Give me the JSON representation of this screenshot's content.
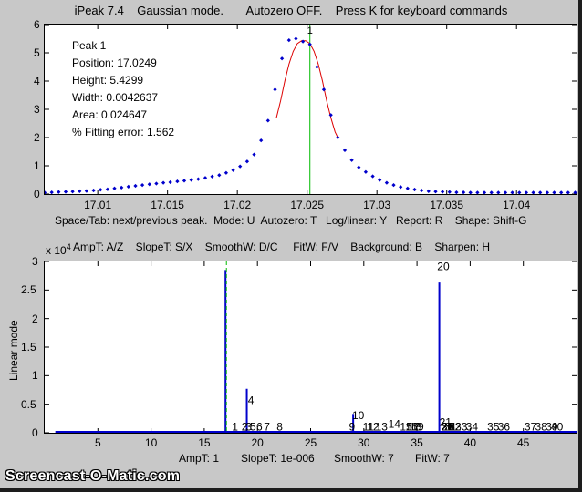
{
  "window": {
    "title": "iPeak 7.4    Gaussian mode.       Autozero OFF.    Press K for keyboard commands"
  },
  "upper": {
    "info": {
      "peak": "Peak 1",
      "position": "Position: 17.0249",
      "height": "Height: 5.4299",
      "width": "Width: 0.0042637",
      "area": "Area: 0.024647",
      "fitting_error": "% Fitting error: 1.562"
    },
    "help_line_1": "Space/Tab: next/previous peak.  Mode: U  Autozero: T   Log/linear: Y   Report: R    Shape: Shift-G",
    "help_line_2": "AmpT: A/Z    SlopeT: S/X    SmoothW: D/C     FitW: F/V    Background: B    Sharpen: H",
    "peak_marker": "1"
  },
  "lower": {
    "ylabel": "Linear mode",
    "exponent_label": "x 10",
    "exponent_power": "4",
    "status": {
      "ampt": "AmpT: 1",
      "slopet": "SlopeT: 1e-006",
      "smoothw": "SmoothW: 7",
      "fitw": "FitW: 7"
    }
  },
  "watermark": "Screencast-O-Matic.com",
  "colors": {
    "data_points": "#0000cc",
    "fit_curve": "#dd0000",
    "marker_line": "#00bb00",
    "signal": "#0000cc"
  },
  "chart_data": [
    {
      "type": "scatter",
      "title": "",
      "xlabel": "",
      "ylabel": "",
      "xlim": [
        17.0062,
        17.0443
      ],
      "ylim": [
        0,
        6
      ],
      "xticks": [
        "17.01",
        "17.015",
        "17.02",
        "17.025",
        "17.03",
        "17.035",
        "17.04"
      ],
      "xtick_values": [
        17.01,
        17.015,
        17.02,
        17.025,
        17.03,
        17.035,
        17.04
      ],
      "yticks": [
        "0",
        "1",
        "2",
        "3",
        "4",
        "5",
        "6"
      ],
      "series": [
        {
          "style": "blue-dots",
          "x": [
            17.0062,
            17.0067,
            17.0072,
            17.0077,
            17.0082,
            17.0087,
            17.0092,
            17.0097,
            17.0102,
            17.0107,
            17.0112,
            17.0117,
            17.0122,
            17.0127,
            17.0132,
            17.0137,
            17.0142,
            17.0147,
            17.0152,
            17.0157,
            17.0162,
            17.0167,
            17.0172,
            17.0177,
            17.0182,
            17.0187,
            17.0192,
            17.0197,
            17.0202,
            17.0207,
            17.0212,
            17.0217,
            17.0222,
            17.0227,
            17.0232,
            17.0237,
            17.0242,
            17.0247,
            17.0252,
            17.0257,
            17.0262,
            17.0267,
            17.0272,
            17.0277,
            17.0282,
            17.0287,
            17.0292,
            17.0297,
            17.0302,
            17.0307,
            17.0312,
            17.0317,
            17.0322,
            17.0327,
            17.0332,
            17.0337,
            17.0342,
            17.0347,
            17.0352,
            17.0357,
            17.0362,
            17.0367,
            17.0372,
            17.0377,
            17.0382,
            17.0387,
            17.0392,
            17.0397,
            17.0402,
            17.0407,
            17.0412,
            17.0417,
            17.0422,
            17.0427,
            17.0432,
            17.0437,
            17.0442
          ],
          "y": [
            0.05,
            0.06,
            0.07,
            0.08,
            0.09,
            0.1,
            0.11,
            0.13,
            0.15,
            0.17,
            0.2,
            0.23,
            0.26,
            0.29,
            0.32,
            0.35,
            0.37,
            0.4,
            0.42,
            0.45,
            0.47,
            0.5,
            0.53,
            0.57,
            0.62,
            0.67,
            0.75,
            0.85,
            0.98,
            1.15,
            1.4,
            1.9,
            2.6,
            3.7,
            4.8,
            5.45,
            5.5,
            5.4,
            5.3,
            4.5,
            3.7,
            2.8,
            2.0,
            1.55,
            1.2,
            0.95,
            0.78,
            0.63,
            0.5,
            0.4,
            0.32,
            0.25,
            0.2,
            0.16,
            0.13,
            0.1,
            0.09,
            0.08,
            0.07,
            0.06,
            0.06,
            0.05,
            0.05,
            0.05,
            0.05,
            0.05,
            0.05,
            0.05,
            0.05,
            0.05,
            0.05,
            0.05,
            0.05,
            0.05,
            0.05,
            0.05,
            0.05
          ]
        },
        {
          "style": "red-fit",
          "x": [
            17.0228,
            17.0231,
            17.0234,
            17.0237,
            17.024,
            17.0243,
            17.0246,
            17.0249,
            17.0252,
            17.0255,
            17.0258,
            17.0261,
            17.0264,
            17.0267,
            17.027,
            17.0272
          ],
          "y": [
            2.7,
            3.3,
            4.0,
            4.6,
            5.05,
            5.33,
            5.43,
            5.43,
            5.33,
            5.05,
            4.6,
            4.0,
            3.3,
            2.7,
            2.2,
            2.0
          ]
        }
      ],
      "marker_x": 17.0252
    },
    {
      "type": "line",
      "title": "",
      "xlabel": "",
      "ylabel": "Linear mode",
      "xlim": [
        0,
        50
      ],
      "ylim": [
        0,
        30000
      ],
      "xticks": [
        "5",
        "10",
        "15",
        "20",
        "25",
        "30",
        "35",
        "40",
        "45"
      ],
      "xtick_values": [
        5,
        10,
        15,
        20,
        25,
        30,
        35,
        40,
        45
      ],
      "yticks": [
        "0",
        "0.5",
        "1",
        "1.5",
        "2",
        "2.5",
        "3"
      ],
      "ytick_values": [
        0,
        5000,
        10000,
        15000,
        20000,
        25000,
        30000
      ],
      "spikes": [
        {
          "x": 17.0,
          "y": 28500
        },
        {
          "x": 19.0,
          "y": 7700
        },
        {
          "x": 29.0,
          "y": 3300
        },
        {
          "x": 37.1,
          "y": 26300
        }
      ],
      "baseline_x": [
        1,
        50
      ],
      "marker_x": 17.0,
      "peak_labels": [
        {
          "text": "1",
          "x": 17.6,
          "y": 400
        },
        {
          "text": "2",
          "x": 18.5,
          "y": 400
        },
        {
          "text": "3",
          "x": 18.9,
          "y": 400
        },
        {
          "text": "4",
          "x": 19.1,
          "y": 5000
        },
        {
          "text": "5",
          "x": 19.3,
          "y": 400
        },
        {
          "text": "6",
          "x": 19.9,
          "y": 400
        },
        {
          "text": "7",
          "x": 20.6,
          "y": 400
        },
        {
          "text": "8",
          "x": 21.8,
          "y": 400
        },
        {
          "text": "9",
          "x": 28.6,
          "y": 400
        },
        {
          "text": "10",
          "x": 28.9,
          "y": 2400
        },
        {
          "text": "11",
          "x": 29.9,
          "y": 400
        },
        {
          "text": "12",
          "x": 30.3,
          "y": 400
        },
        {
          "text": "13",
          "x": 31.1,
          "y": 400
        },
        {
          "text": "14",
          "x": 32.3,
          "y": 900
        },
        {
          "text": "15",
          "x": 33.4,
          "y": 400
        },
        {
          "text": "16",
          "x": 33.9,
          "y": 400
        },
        {
          "text": "17",
          "x": 34.1,
          "y": 400
        },
        {
          "text": "18",
          "x": 34.3,
          "y": 400
        },
        {
          "text": "19",
          "x": 34.5,
          "y": 400
        },
        {
          "text": "20",
          "x": 36.9,
          "y": 28500
        },
        {
          "text": "21",
          "x": 37.1,
          "y": 1200
        },
        {
          "text": "22",
          "x": 37.3,
          "y": 400
        },
        {
          "text": "23",
          "x": 37.3,
          "y": 400
        },
        {
          "text": "24",
          "x": 37.3,
          "y": 400
        },
        {
          "text": "25",
          "x": 37.3,
          "y": 400
        },
        {
          "text": "26",
          "x": 37.3,
          "y": 400
        },
        {
          "text": "27",
          "x": 37.3,
          "y": 400
        },
        {
          "text": "28",
          "x": 37.3,
          "y": 400
        },
        {
          "text": "29",
          "x": 37.3,
          "y": 400
        },
        {
          "text": "30",
          "x": 37.3,
          "y": 400
        },
        {
          "text": "31",
          "x": 37.6,
          "y": 400
        },
        {
          "text": "32",
          "x": 38.0,
          "y": 400
        },
        {
          "text": "33",
          "x": 38.6,
          "y": 400
        },
        {
          "text": "34",
          "x": 39.6,
          "y": 400
        },
        {
          "text": "35",
          "x": 41.6,
          "y": 400
        },
        {
          "text": "36",
          "x": 42.6,
          "y": 400
        },
        {
          "text": "37",
          "x": 45.1,
          "y": 400
        },
        {
          "text": "38",
          "x": 46.1,
          "y": 400
        },
        {
          "text": "39",
          "x": 47.1,
          "y": 400
        },
        {
          "text": "40",
          "x": 47.6,
          "y": 400
        }
      ]
    }
  ]
}
